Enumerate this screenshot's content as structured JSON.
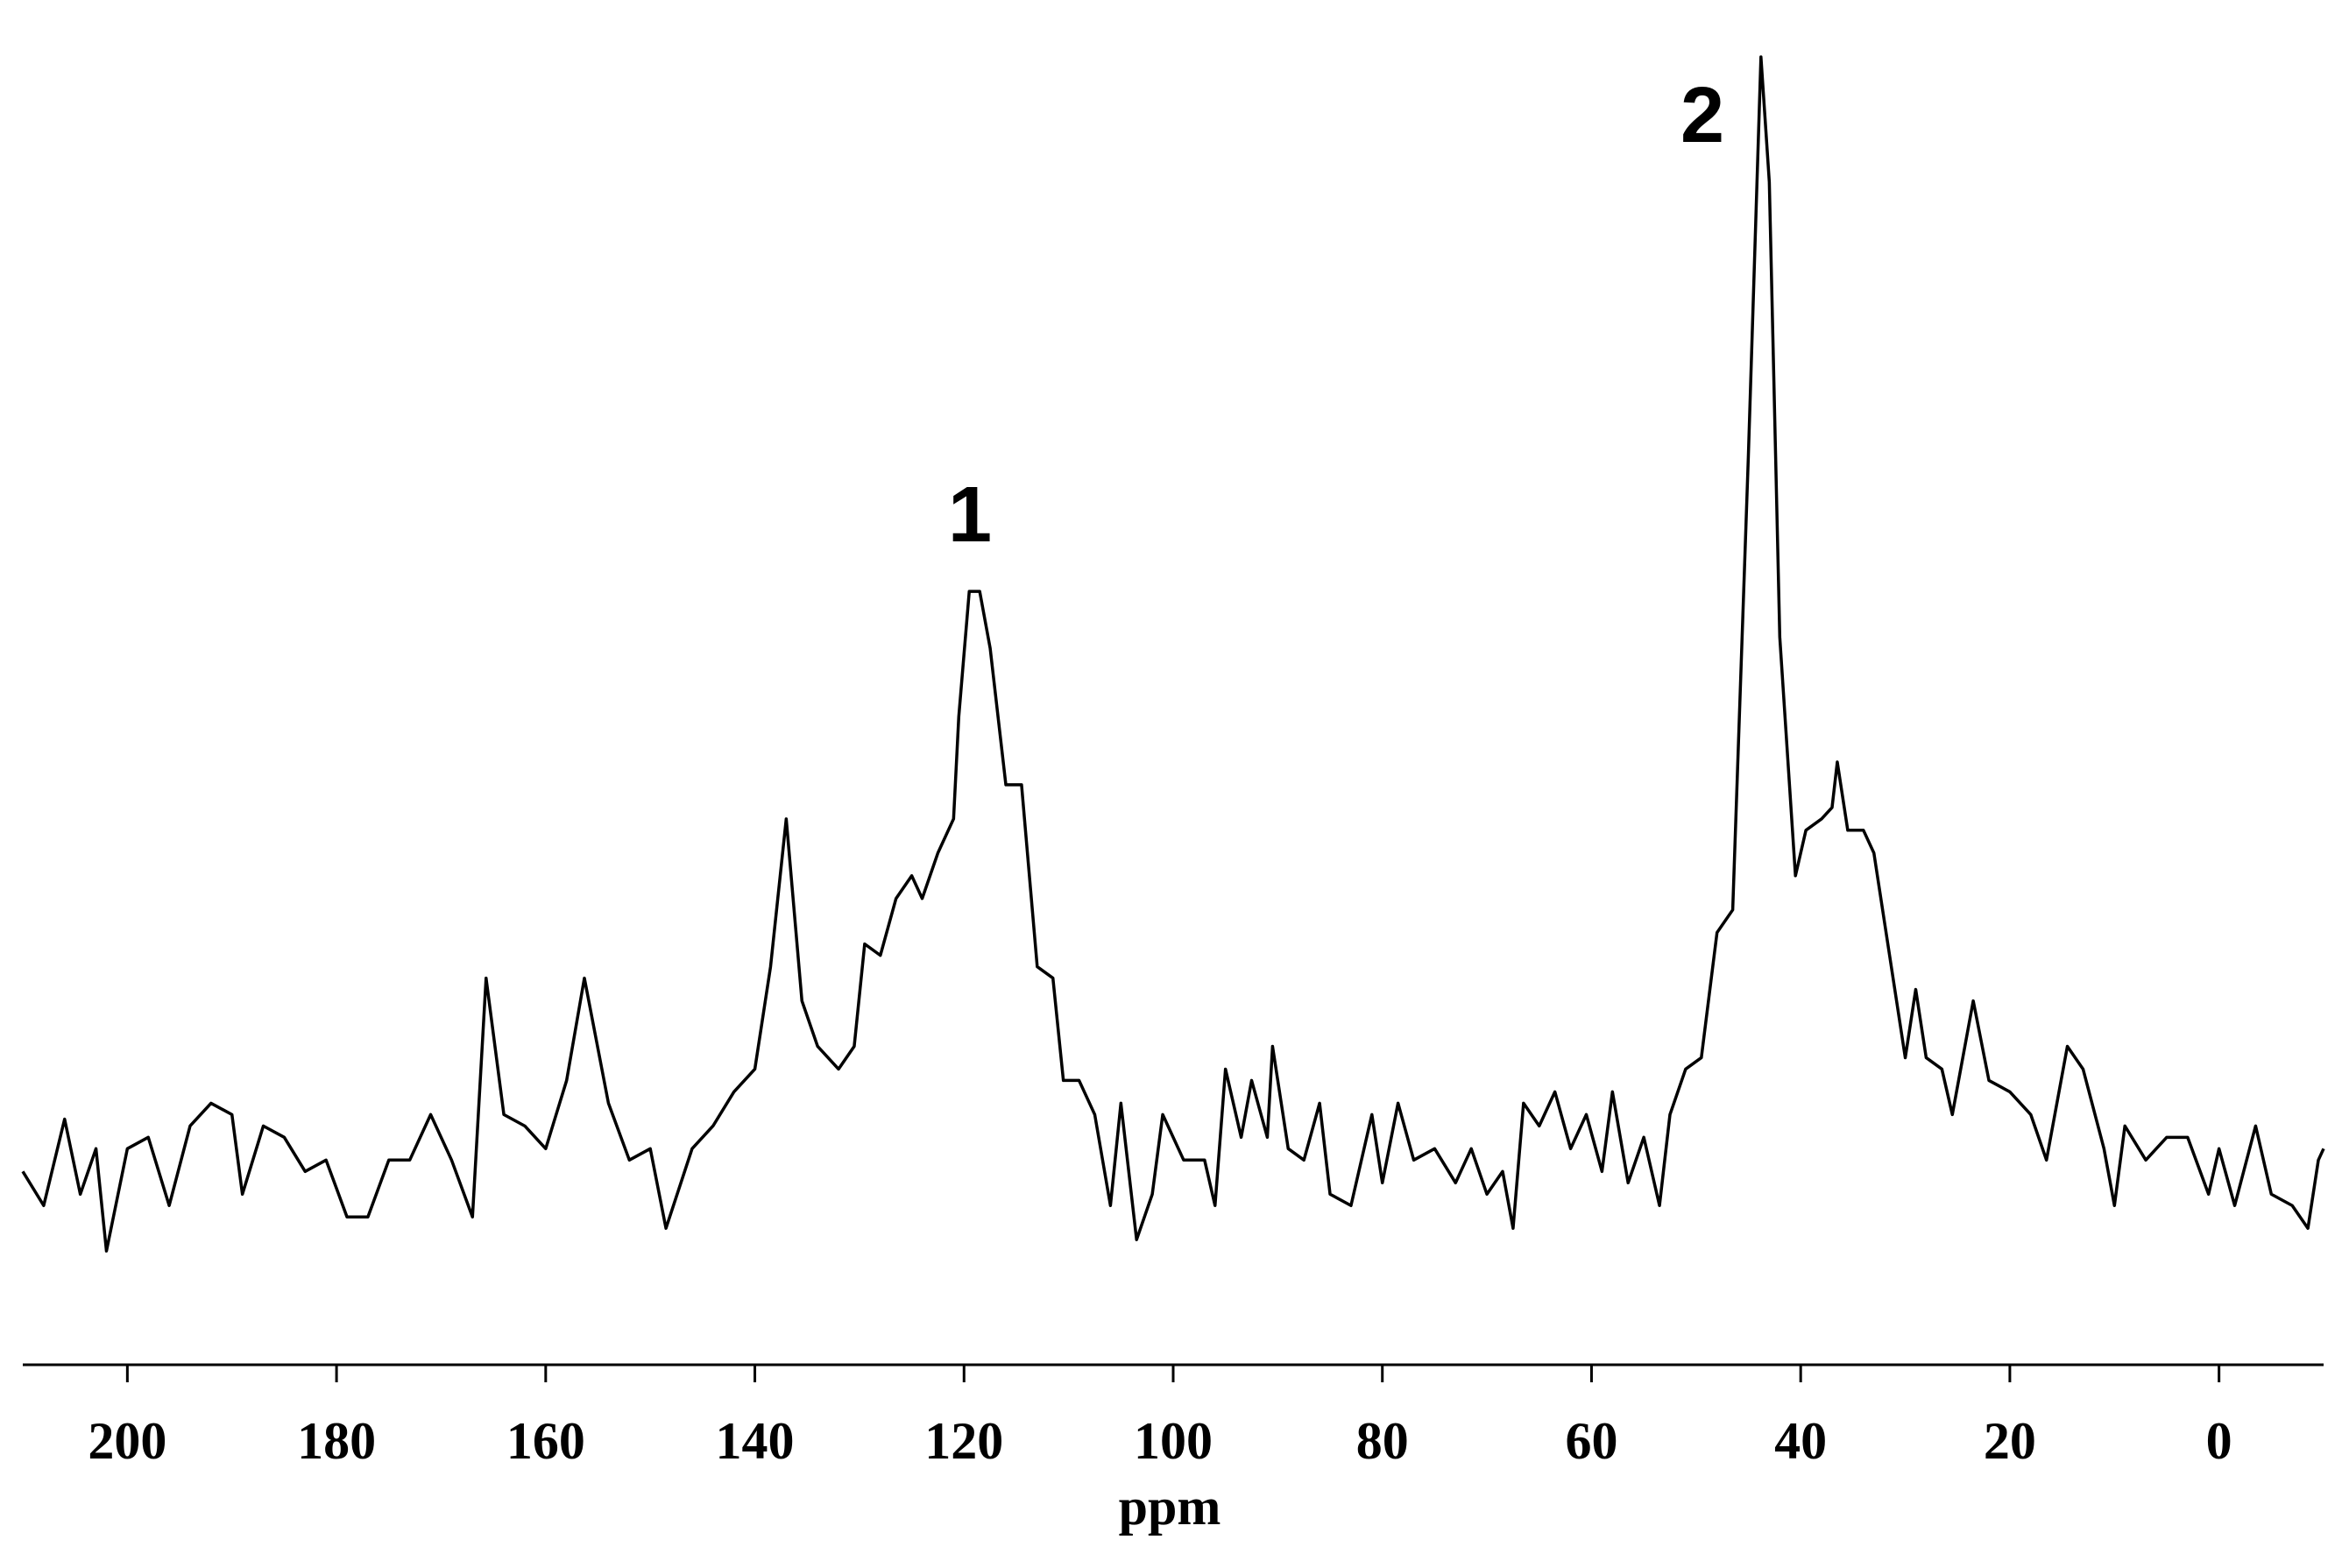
{
  "chart_data": {
    "type": "line",
    "x_label": "ppm",
    "annotations": [
      "1",
      "2"
    ],
    "xlim": [
      210,
      -10
    ],
    "ylim": [
      -15,
      101
    ],
    "xticks": [
      200,
      180,
      160,
      140,
      120,
      100,
      80,
      60,
      40,
      20,
      0
    ],
    "series": [
      {
        "color": "#000000",
        "x": [
          210,
          208,
          206,
          204.5,
          203,
          202,
          200,
          198,
          196,
          194,
          192,
          190,
          189,
          187,
          185,
          183,
          181,
          179,
          177,
          175,
          173,
          171,
          169,
          167,
          165.7,
          164,
          162,
          160,
          158,
          156.3,
          154,
          152,
          150,
          148.5,
          146,
          144,
          142,
          140,
          138.5,
          137,
          135.5,
          134,
          132,
          130.5,
          129.5,
          128,
          126.5,
          125,
          124,
          122.5,
          121,
          120.5,
          119.5,
          118.5,
          117.5,
          116,
          114.5,
          113,
          111.5,
          110.5,
          109,
          107.5,
          106,
          105,
          103.5,
          102,
          101,
          99,
          97,
          96,
          95,
          93.5,
          92.5,
          91,
          90.5,
          89,
          87.5,
          86,
          85,
          83,
          81,
          80,
          78.5,
          77,
          75,
          73,
          71.5,
          70,
          68.5,
          67.5,
          66.5,
          65,
          63.5,
          62,
          60.5,
          59,
          58,
          56.5,
          55,
          53.5,
          52.5,
          51,
          49.5,
          48,
          46.5,
          45,
          43.8,
          43,
          42,
          40.5,
          39.5,
          38,
          37,
          36.5,
          35.5,
          34,
          33,
          31.5,
          30,
          29,
          28,
          26.5,
          25.5,
          23.5,
          22,
          20,
          18,
          16.5,
          14.5,
          13,
          11,
          10,
          9,
          7,
          5,
          3,
          1,
          0,
          -1.5,
          -3.5,
          -5,
          -7,
          -8.5,
          -9.5,
          -10
        ],
        "values": [
          2,
          -1,
          6.6,
          0,
          4,
          -5,
          4,
          5,
          -1,
          6,
          8,
          7,
          0,
          6,
          5,
          2,
          3,
          -2,
          -2,
          3,
          3,
          7,
          3,
          -2,
          19,
          7,
          6,
          4,
          10,
          19,
          8,
          3,
          4,
          -3,
          4,
          6,
          9,
          11,
          20,
          33,
          17,
          13,
          11,
          13,
          22,
          21,
          26,
          28,
          26,
          30,
          33,
          42,
          53,
          53,
          48,
          36,
          36,
          20,
          19,
          10,
          10,
          7,
          -1,
          8,
          -4,
          0,
          7,
          3,
          3,
          -1,
          11,
          5,
          10,
          5,
          13,
          4,
          3,
          8,
          0,
          -1,
          7,
          1,
          8,
          3,
          4,
          1,
          4,
          0,
          2,
          -3,
          8,
          6,
          9,
          4,
          7,
          2,
          9,
          1,
          5,
          -1,
          7,
          11,
          12,
          23,
          25,
          65,
          100,
          89,
          49,
          28,
          32,
          33,
          34,
          38,
          32,
          32,
          30,
          21,
          12,
          18,
          12,
          11,
          7,
          17,
          10,
          9,
          7,
          3,
          13,
          11,
          4,
          -1,
          6,
          3,
          5,
          5,
          0,
          4,
          -1,
          6,
          0,
          -1,
          -3,
          3,
          4
        ]
      }
    ]
  }
}
